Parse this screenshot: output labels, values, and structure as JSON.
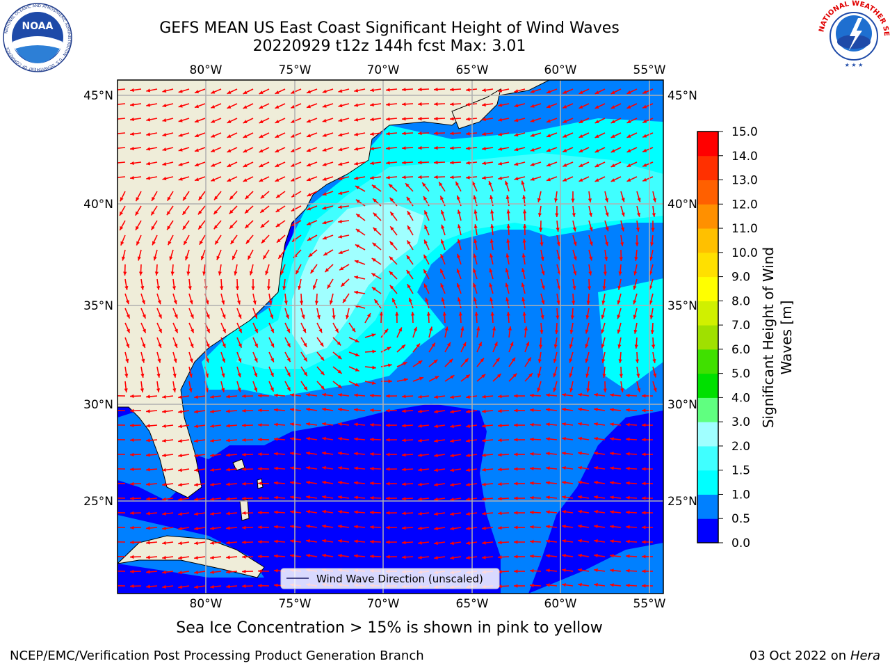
{
  "header": {
    "title_line1": "GEFS MEAN US East Coast Significant Height of Wind Waves",
    "title_line2": "20220929 t12z 144h fcst   Max: 3.01"
  },
  "map": {
    "lon_labels": [
      "80°W",
      "75°W",
      "70°W",
      "65°W",
      "60°W",
      "55°W"
    ],
    "lat_labels": [
      "45°N",
      "40°N",
      "35°N",
      "30°N",
      "25°N"
    ],
    "legend_label": "Wind Wave Direction (unscaled)",
    "colors": {
      "land": "#efedd9",
      "h0": "#0000ff",
      "h05": "#0080ff",
      "h1": "#00ffff",
      "h15": "#40ffff",
      "h2": "#a0ffff",
      "arrow": "#ff0000"
    }
  },
  "colorbar": {
    "label": "Significant Height of Wind Waves [m]",
    "ticks": [
      "0.0",
      "0.5",
      "1.0",
      "1.5",
      "2.0",
      "3.0",
      "4.0",
      "5.0",
      "6.0",
      "7.0",
      "8.0",
      "9.0",
      "10.0",
      "11.0",
      "12.0",
      "13.0",
      "14.0",
      "15.0"
    ],
    "colors": [
      "#0000ff",
      "#0080ff",
      "#00ffff",
      "#40ffff",
      "#a0ffff",
      "#60ff80",
      "#00e000",
      "#40e000",
      "#a0e000",
      "#d0f000",
      "#ffff00",
      "#ffe000",
      "#ffc000",
      "#ff9000",
      "#ff6000",
      "#ff3000",
      "#ff0000"
    ]
  },
  "footer": {
    "note": "Sea Ice Concentration > 15% is shown in pink to yellow",
    "left": "NCEP/EMC/Verification Post Processing Product Generation Branch",
    "right_date": "03 Oct 2022 on ",
    "right_host": "Hera"
  },
  "logos": {
    "noaa_text": "NOAA",
    "noaa_ring": "NATIONAL OCEANIC AND ATMOSPHERIC ADMINISTRATION · U.S. DEPARTMENT OF COMMERCE",
    "nws_ring": "NATIONAL WEATHER SERVICE"
  }
}
